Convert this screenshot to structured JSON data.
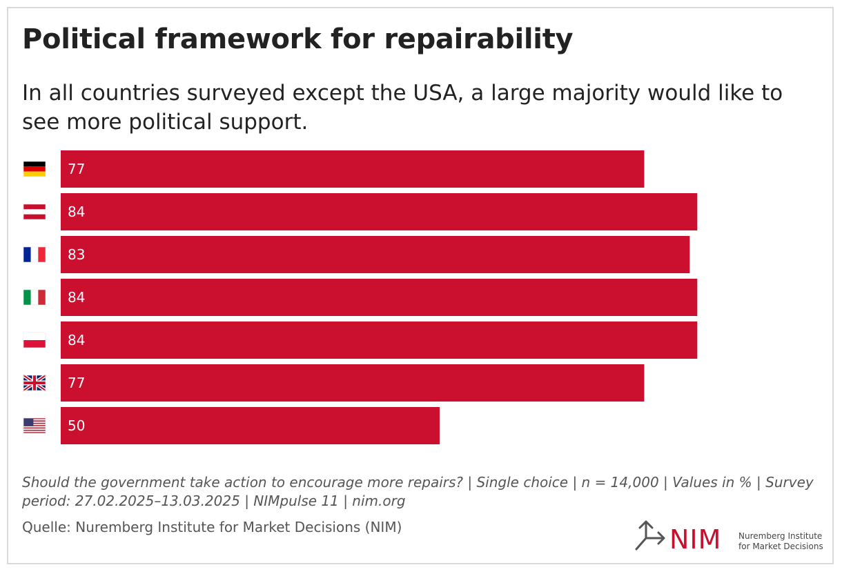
{
  "header": {
    "title": "Political framework for repairability",
    "subtitle": "In all countries surveyed except the USA, a large majority would like to see more political support."
  },
  "chart_data": {
    "type": "bar",
    "orientation": "horizontal",
    "categories": [
      "Germany",
      "Austria",
      "France",
      "Italy",
      "Poland",
      "United Kingdom",
      "USA"
    ],
    "category_icons": [
      "flag-germany",
      "flag-austria",
      "flag-france",
      "flag-italy",
      "flag-poland",
      "flag-uk",
      "flag-usa"
    ],
    "values": [
      77,
      84,
      83,
      84,
      84,
      77,
      50
    ],
    "xlim": [
      0,
      100
    ],
    "bar_color": "#cb0f2f",
    "label_color": "#ffffff",
    "grid": false
  },
  "footer": {
    "note": "Should the government take action to encourage more repairs? | Single choice | n = 14,000 | Values in % | Survey period: 27.02.2025–13.03.2025 | NIMpulse 11 | nim.org",
    "source": "Quelle: Nuremberg Institute for Market Decisions (NIM)"
  },
  "logo": {
    "wordmark": "NIM",
    "name_line1": "Nuremberg Institute",
    "name_line2": "for Market Decisions",
    "color": "#c8102e"
  }
}
